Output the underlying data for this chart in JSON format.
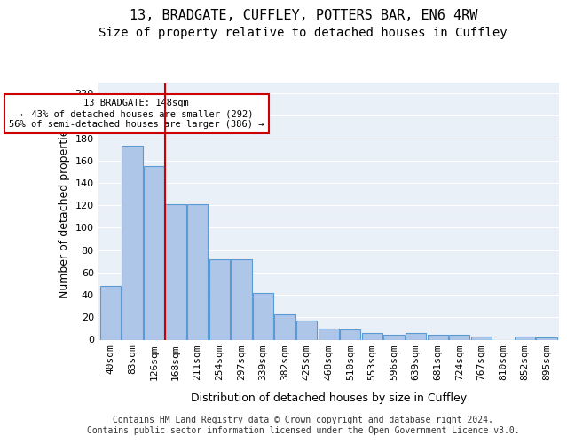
{
  "title1": "13, BRADGATE, CUFFLEY, POTTERS BAR, EN6 4RW",
  "title2": "Size of property relative to detached houses in Cuffley",
  "xlabel": "Distribution of detached houses by size in Cuffley",
  "ylabel": "Number of detached properties",
  "categories": [
    "40sqm",
    "83sqm",
    "126sqm",
    "168sqm",
    "211sqm",
    "254sqm",
    "297sqm",
    "339sqm",
    "382sqm",
    "425sqm",
    "468sqm",
    "510sqm",
    "553sqm",
    "596sqm",
    "639sqm",
    "681sqm",
    "724sqm",
    "767sqm",
    "810sqm",
    "852sqm",
    "895sqm"
  ],
  "bar_values": [
    48,
    173,
    155,
    121,
    121,
    72,
    72,
    42,
    23,
    17,
    10,
    9,
    6,
    4,
    6,
    4,
    4,
    3,
    0,
    3,
    2
  ],
  "bar_color": "#aec6e8",
  "bar_edge_color": "#5b9bd5",
  "vline_x": 2.5,
  "vline_color": "#cc0000",
  "annotation_text": "13 BRADGATE: 148sqm\n← 43% of detached houses are smaller (292)\n56% of semi-detached houses are larger (386) →",
  "annotation_box_edgecolor": "#cc0000",
  "ylim": [
    0,
    230
  ],
  "yticks": [
    0,
    20,
    40,
    60,
    80,
    100,
    120,
    140,
    160,
    180,
    200,
    220
  ],
  "bg_color": "#eaf0f8",
  "footer": "Contains HM Land Registry data © Crown copyright and database right 2024.\nContains public sector information licensed under the Open Government Licence v3.0.",
  "title1_fontsize": 11,
  "title2_fontsize": 10,
  "xlabel_fontsize": 9,
  "ylabel_fontsize": 9,
  "tick_fontsize": 8,
  "footer_fontsize": 7,
  "ann_fontsize": 7.5
}
